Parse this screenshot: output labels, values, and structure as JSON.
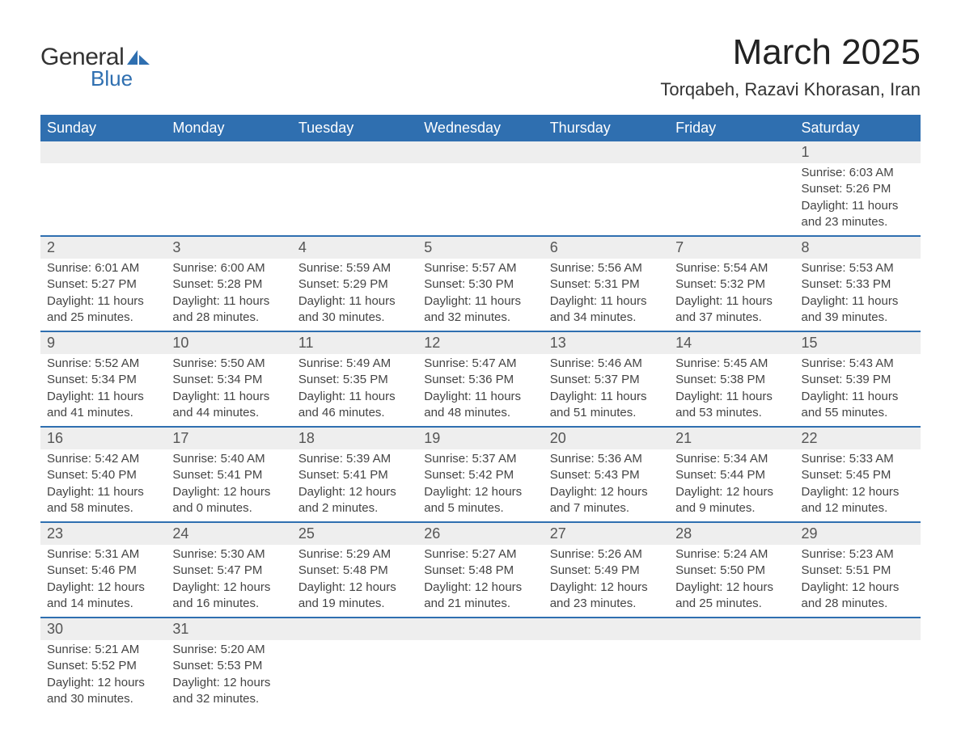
{
  "logo": {
    "text_general": "General",
    "text_blue": "Blue",
    "shape_color": "#2f6fb0"
  },
  "title": "March 2025",
  "location": "Torqabeh, Razavi Khorasan, Iran",
  "colors": {
    "header_bg": "#2f6fb0",
    "header_text": "#ffffff",
    "daynum_bg": "#eeeeee",
    "row_border": "#2f6fb0",
    "body_text": "#444444",
    "daynum_text": "#555555"
  },
  "days_of_week": [
    "Sunday",
    "Monday",
    "Tuesday",
    "Wednesday",
    "Thursday",
    "Friday",
    "Saturday"
  ],
  "weeks": [
    [
      null,
      null,
      null,
      null,
      null,
      null,
      {
        "n": "1",
        "sunrise": "Sunrise: 6:03 AM",
        "sunset": "Sunset: 5:26 PM",
        "daylight1": "Daylight: 11 hours",
        "daylight2": "and 23 minutes."
      }
    ],
    [
      {
        "n": "2",
        "sunrise": "Sunrise: 6:01 AM",
        "sunset": "Sunset: 5:27 PM",
        "daylight1": "Daylight: 11 hours",
        "daylight2": "and 25 minutes."
      },
      {
        "n": "3",
        "sunrise": "Sunrise: 6:00 AM",
        "sunset": "Sunset: 5:28 PM",
        "daylight1": "Daylight: 11 hours",
        "daylight2": "and 28 minutes."
      },
      {
        "n": "4",
        "sunrise": "Sunrise: 5:59 AM",
        "sunset": "Sunset: 5:29 PM",
        "daylight1": "Daylight: 11 hours",
        "daylight2": "and 30 minutes."
      },
      {
        "n": "5",
        "sunrise": "Sunrise: 5:57 AM",
        "sunset": "Sunset: 5:30 PM",
        "daylight1": "Daylight: 11 hours",
        "daylight2": "and 32 minutes."
      },
      {
        "n": "6",
        "sunrise": "Sunrise: 5:56 AM",
        "sunset": "Sunset: 5:31 PM",
        "daylight1": "Daylight: 11 hours",
        "daylight2": "and 34 minutes."
      },
      {
        "n": "7",
        "sunrise": "Sunrise: 5:54 AM",
        "sunset": "Sunset: 5:32 PM",
        "daylight1": "Daylight: 11 hours",
        "daylight2": "and 37 minutes."
      },
      {
        "n": "8",
        "sunrise": "Sunrise: 5:53 AM",
        "sunset": "Sunset: 5:33 PM",
        "daylight1": "Daylight: 11 hours",
        "daylight2": "and 39 minutes."
      }
    ],
    [
      {
        "n": "9",
        "sunrise": "Sunrise: 5:52 AM",
        "sunset": "Sunset: 5:34 PM",
        "daylight1": "Daylight: 11 hours",
        "daylight2": "and 41 minutes."
      },
      {
        "n": "10",
        "sunrise": "Sunrise: 5:50 AM",
        "sunset": "Sunset: 5:34 PM",
        "daylight1": "Daylight: 11 hours",
        "daylight2": "and 44 minutes."
      },
      {
        "n": "11",
        "sunrise": "Sunrise: 5:49 AM",
        "sunset": "Sunset: 5:35 PM",
        "daylight1": "Daylight: 11 hours",
        "daylight2": "and 46 minutes."
      },
      {
        "n": "12",
        "sunrise": "Sunrise: 5:47 AM",
        "sunset": "Sunset: 5:36 PM",
        "daylight1": "Daylight: 11 hours",
        "daylight2": "and 48 minutes."
      },
      {
        "n": "13",
        "sunrise": "Sunrise: 5:46 AM",
        "sunset": "Sunset: 5:37 PM",
        "daylight1": "Daylight: 11 hours",
        "daylight2": "and 51 minutes."
      },
      {
        "n": "14",
        "sunrise": "Sunrise: 5:45 AM",
        "sunset": "Sunset: 5:38 PM",
        "daylight1": "Daylight: 11 hours",
        "daylight2": "and 53 minutes."
      },
      {
        "n": "15",
        "sunrise": "Sunrise: 5:43 AM",
        "sunset": "Sunset: 5:39 PM",
        "daylight1": "Daylight: 11 hours",
        "daylight2": "and 55 minutes."
      }
    ],
    [
      {
        "n": "16",
        "sunrise": "Sunrise: 5:42 AM",
        "sunset": "Sunset: 5:40 PM",
        "daylight1": "Daylight: 11 hours",
        "daylight2": "and 58 minutes."
      },
      {
        "n": "17",
        "sunrise": "Sunrise: 5:40 AM",
        "sunset": "Sunset: 5:41 PM",
        "daylight1": "Daylight: 12 hours",
        "daylight2": "and 0 minutes."
      },
      {
        "n": "18",
        "sunrise": "Sunrise: 5:39 AM",
        "sunset": "Sunset: 5:41 PM",
        "daylight1": "Daylight: 12 hours",
        "daylight2": "and 2 minutes."
      },
      {
        "n": "19",
        "sunrise": "Sunrise: 5:37 AM",
        "sunset": "Sunset: 5:42 PM",
        "daylight1": "Daylight: 12 hours",
        "daylight2": "and 5 minutes."
      },
      {
        "n": "20",
        "sunrise": "Sunrise: 5:36 AM",
        "sunset": "Sunset: 5:43 PM",
        "daylight1": "Daylight: 12 hours",
        "daylight2": "and 7 minutes."
      },
      {
        "n": "21",
        "sunrise": "Sunrise: 5:34 AM",
        "sunset": "Sunset: 5:44 PM",
        "daylight1": "Daylight: 12 hours",
        "daylight2": "and 9 minutes."
      },
      {
        "n": "22",
        "sunrise": "Sunrise: 5:33 AM",
        "sunset": "Sunset: 5:45 PM",
        "daylight1": "Daylight: 12 hours",
        "daylight2": "and 12 minutes."
      }
    ],
    [
      {
        "n": "23",
        "sunrise": "Sunrise: 5:31 AM",
        "sunset": "Sunset: 5:46 PM",
        "daylight1": "Daylight: 12 hours",
        "daylight2": "and 14 minutes."
      },
      {
        "n": "24",
        "sunrise": "Sunrise: 5:30 AM",
        "sunset": "Sunset: 5:47 PM",
        "daylight1": "Daylight: 12 hours",
        "daylight2": "and 16 minutes."
      },
      {
        "n": "25",
        "sunrise": "Sunrise: 5:29 AM",
        "sunset": "Sunset: 5:48 PM",
        "daylight1": "Daylight: 12 hours",
        "daylight2": "and 19 minutes."
      },
      {
        "n": "26",
        "sunrise": "Sunrise: 5:27 AM",
        "sunset": "Sunset: 5:48 PM",
        "daylight1": "Daylight: 12 hours",
        "daylight2": "and 21 minutes."
      },
      {
        "n": "27",
        "sunrise": "Sunrise: 5:26 AM",
        "sunset": "Sunset: 5:49 PM",
        "daylight1": "Daylight: 12 hours",
        "daylight2": "and 23 minutes."
      },
      {
        "n": "28",
        "sunrise": "Sunrise: 5:24 AM",
        "sunset": "Sunset: 5:50 PM",
        "daylight1": "Daylight: 12 hours",
        "daylight2": "and 25 minutes."
      },
      {
        "n": "29",
        "sunrise": "Sunrise: 5:23 AM",
        "sunset": "Sunset: 5:51 PM",
        "daylight1": "Daylight: 12 hours",
        "daylight2": "and 28 minutes."
      }
    ],
    [
      {
        "n": "30",
        "sunrise": "Sunrise: 5:21 AM",
        "sunset": "Sunset: 5:52 PM",
        "daylight1": "Daylight: 12 hours",
        "daylight2": "and 30 minutes."
      },
      {
        "n": "31",
        "sunrise": "Sunrise: 5:20 AM",
        "sunset": "Sunset: 5:53 PM",
        "daylight1": "Daylight: 12 hours",
        "daylight2": "and 32 minutes."
      },
      null,
      null,
      null,
      null,
      null
    ]
  ]
}
